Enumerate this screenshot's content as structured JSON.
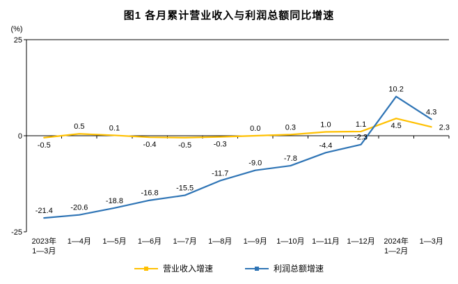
{
  "chart_data": {
    "type": "line",
    "title": "图1  各月累计营业收入与利润总额同比增速",
    "unit_label": "(%)",
    "ylim": [
      -25,
      25
    ],
    "y_ticks": [
      25,
      0,
      -25
    ],
    "y_tick_labels": [
      "25",
      "0",
      "-25"
    ],
    "grid": "horizontal lines at 25 and 0 only",
    "legend_position": "bottom",
    "categories": [
      [
        "2023年",
        "1—3月"
      ],
      [
        "1—4月"
      ],
      [
        "1—5月"
      ],
      [
        "1—6月"
      ],
      [
        "1—7月"
      ],
      [
        "1—8月"
      ],
      [
        "1—9月"
      ],
      [
        "1—10月"
      ],
      [
        "1—11月"
      ],
      [
        "1—12月"
      ],
      [
        "2024年",
        "1—2月"
      ],
      [
        "1—3月"
      ]
    ],
    "series": [
      {
        "name": "营业收入增速",
        "color": "#FFC000",
        "values": [
          -0.5,
          0.5,
          0.1,
          -0.4,
          -0.5,
          -0.3,
          0.0,
          0.3,
          1.0,
          1.1,
          4.5,
          2.3
        ],
        "labels": [
          "-0.5",
          "0.5",
          "0.1",
          "-0.4",
          "-0.5",
          "-0.3",
          "0.0",
          "0.3",
          "1.0",
          "1.1",
          "4.5",
          "2.3"
        ],
        "label_pos": [
          "below",
          "above",
          "above",
          "below",
          "below",
          "below",
          "above",
          "above",
          "above",
          "above",
          "below",
          "right"
        ]
      },
      {
        "name": "利润总额增速",
        "color": "#2E74B5",
        "values": [
          -21.4,
          -20.6,
          -18.8,
          -16.8,
          -15.5,
          -11.7,
          -9.0,
          -7.8,
          -4.4,
          -2.3,
          10.2,
          4.3
        ],
        "labels": [
          "-21.4",
          "-20.6",
          "-18.8",
          "-16.8",
          "-15.5",
          "-11.7",
          "-9.0",
          "-7.8",
          "-4.4",
          "-2.3",
          "10.2",
          "4.3"
        ],
        "label_pos": [
          "above",
          "above",
          "above",
          "above",
          "above",
          "above",
          "above",
          "above",
          "above",
          "above",
          "above",
          "above"
        ]
      }
    ]
  }
}
